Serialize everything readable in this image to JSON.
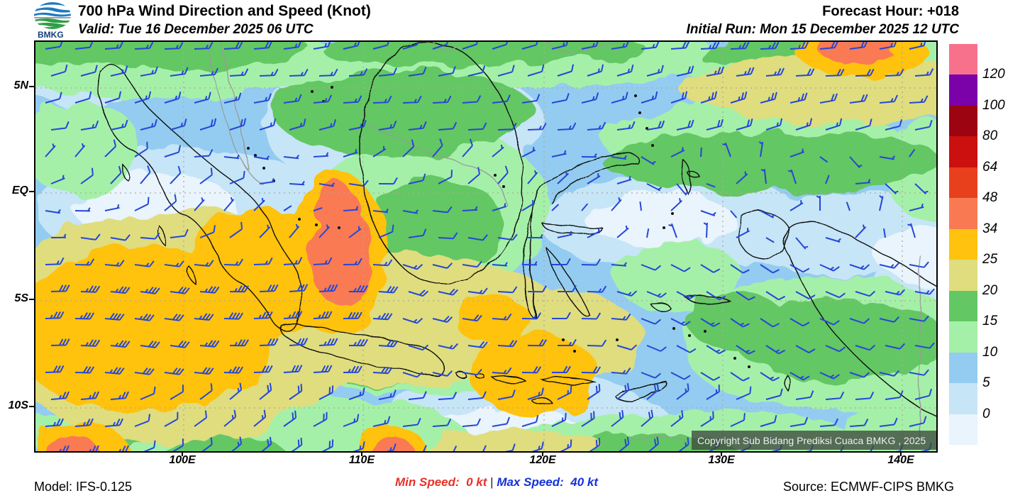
{
  "header": {
    "logo_text": "BMKG",
    "title": "700 hPa Wind Direction and Speed (Knot)",
    "valid": "Valid: Tue 16 December 2025 06 UTC",
    "forecast_hour": "Forecast Hour: +018",
    "initial_run": "Initial Run: Mon 15 December 2025 12 UTC"
  },
  "map": {
    "lat_ticks": [
      "5N",
      "EQ",
      "5S",
      "10S"
    ],
    "lon_ticks": [
      "100E",
      "110E",
      "120E",
      "130E",
      "140E"
    ],
    "copyright": "Copyright Sub Bidang Prediksi Cuaca BMKG , 2025"
  },
  "colorbar": {
    "labels": [
      "120",
      "100",
      "80",
      "64",
      "48",
      "34",
      "25",
      "20",
      "15",
      "10",
      "5",
      "0"
    ],
    "colors_top_to_bottom": [
      "#F8718C",
      "#7A02A8",
      "#9B0410",
      "#CC0F0F",
      "#E8401C",
      "#F97A52",
      "#FFC20E",
      "#DFDD7E",
      "#63C764",
      "#A5F0A8",
      "#93CCF0",
      "#C6E5F7",
      "#E9F4FC"
    ]
  },
  "footer": {
    "model": "Model: IFS-0.125",
    "min_speed_label": "Min Speed:",
    "min_speed_value": "0 kt",
    "separator": "|",
    "max_speed_label": "Max Speed:",
    "max_speed_value": "40 kt",
    "source": "Source: ECMWF-CIPS BMKG"
  },
  "wind": {
    "barb_color": "#2647D7",
    "min_kt": 0,
    "max_kt": 40
  }
}
